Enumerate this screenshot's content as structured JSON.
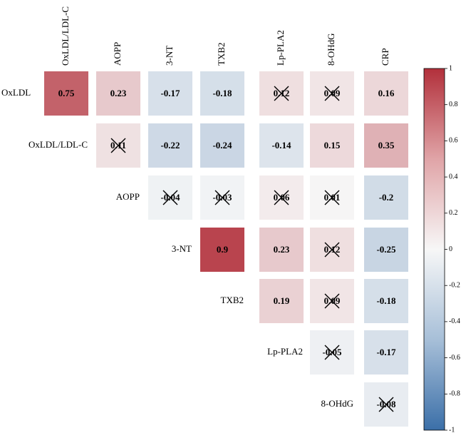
{
  "chart_data": {
    "type": "heatmap",
    "title": "",
    "column_labels": [
      "OxLDL/LDL-C",
      "AOPP",
      "3-NT",
      "TXB2",
      "Lp-PLA2",
      "8-OHdG",
      "CRP"
    ],
    "row_labels": [
      "OxLDL",
      "OxLDL/LDL-C",
      "AOPP",
      "3-NT",
      "TXB2",
      "Lp-PLA2",
      "8-OHdG"
    ],
    "cells": [
      {
        "row": 0,
        "col": 0,
        "value": 0.75,
        "label": "0.75",
        "crossed": false
      },
      {
        "row": 0,
        "col": 1,
        "value": 0.23,
        "label": "0.23",
        "crossed": false
      },
      {
        "row": 0,
        "col": 2,
        "value": -0.17,
        "label": "-0.17",
        "crossed": false
      },
      {
        "row": 0,
        "col": 3,
        "value": -0.18,
        "label": "-0.18",
        "crossed": false
      },
      {
        "row": 0,
        "col": 4,
        "value": 0.12,
        "label": "0.12",
        "crossed": true
      },
      {
        "row": 0,
        "col": 5,
        "value": 0.09,
        "label": "0.09",
        "crossed": true
      },
      {
        "row": 0,
        "col": 6,
        "value": 0.16,
        "label": "0.16",
        "crossed": false
      },
      {
        "row": 1,
        "col": 1,
        "value": 0.11,
        "label": "0.11",
        "crossed": true
      },
      {
        "row": 1,
        "col": 2,
        "value": -0.22,
        "label": "-0.22",
        "crossed": false
      },
      {
        "row": 1,
        "col": 3,
        "value": -0.24,
        "label": "-0.24",
        "crossed": false
      },
      {
        "row": 1,
        "col": 4,
        "value": -0.14,
        "label": "-0.14",
        "crossed": false
      },
      {
        "row": 1,
        "col": 5,
        "value": 0.15,
        "label": "0.15",
        "crossed": false
      },
      {
        "row": 1,
        "col": 6,
        "value": 0.35,
        "label": "0.35",
        "crossed": false
      },
      {
        "row": 2,
        "col": 2,
        "value": -0.04,
        "label": "-0.04",
        "crossed": true
      },
      {
        "row": 2,
        "col": 3,
        "value": -0.03,
        "label": "-0.03",
        "crossed": true
      },
      {
        "row": 2,
        "col": 4,
        "value": 0.06,
        "label": "0.06",
        "crossed": true
      },
      {
        "row": 2,
        "col": 5,
        "value": 0.01,
        "label": "0.01",
        "crossed": true
      },
      {
        "row": 2,
        "col": 6,
        "value": -0.2,
        "label": "-0.2",
        "crossed": false
      },
      {
        "row": 3,
        "col": 3,
        "value": 0.9,
        "label": "0.9",
        "crossed": false
      },
      {
        "row": 3,
        "col": 4,
        "value": 0.23,
        "label": "0.23",
        "crossed": false
      },
      {
        "row": 3,
        "col": 5,
        "value": 0.12,
        "label": "0.12",
        "crossed": true
      },
      {
        "row": 3,
        "col": 6,
        "value": -0.25,
        "label": "-0.25",
        "crossed": false
      },
      {
        "row": 4,
        "col": 4,
        "value": 0.19,
        "label": "0.19",
        "crossed": false
      },
      {
        "row": 4,
        "col": 5,
        "value": 0.09,
        "label": "0.09",
        "crossed": true
      },
      {
        "row": 4,
        "col": 6,
        "value": -0.18,
        "label": "-0.18",
        "crossed": false
      },
      {
        "row": 5,
        "col": 5,
        "value": -0.05,
        "label": "-0.05",
        "crossed": true
      },
      {
        "row": 5,
        "col": 6,
        "value": -0.17,
        "label": "-0.17",
        "crossed": false
      },
      {
        "row": 6,
        "col": 6,
        "value": -0.08,
        "label": "-0.08",
        "crossed": true
      }
    ],
    "colorbar": {
      "range": [
        -1,
        1
      ],
      "ticks": [
        1,
        0.8,
        0.6,
        0.4,
        0.2,
        0,
        -0.2,
        -0.4,
        -0.6,
        -0.8,
        -1
      ],
      "tick_labels": [
        "1",
        "0.8",
        "0.6",
        "0.4",
        "0.2",
        "0",
        "-0.2",
        "-0.4",
        "-0.6",
        "-0.8",
        "-1"
      ],
      "colors": {
        "negative": "#3b6fa8",
        "zero": "#f7f7f7",
        "positive": "#b2303b"
      }
    },
    "legend_placement": "right",
    "grid": false
  }
}
